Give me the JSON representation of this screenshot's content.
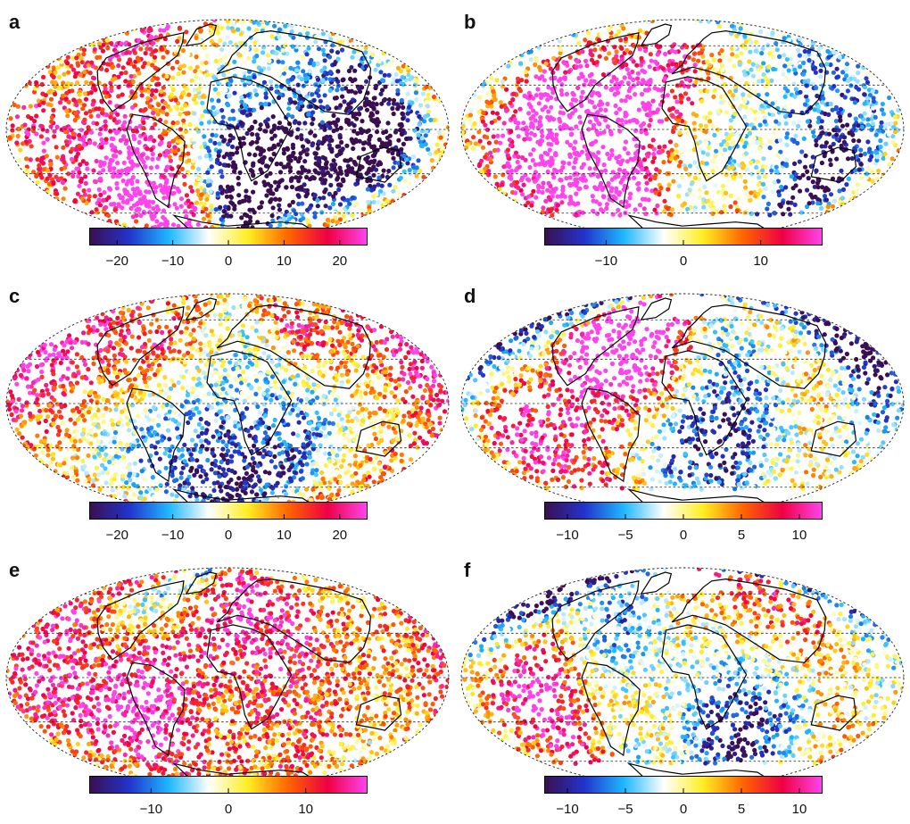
{
  "figure": {
    "colormap": [
      "#3b0f4f",
      "#2233cc",
      "#1fb8ff",
      "#ffffff",
      "#ffee22",
      "#ff6600",
      "#ee0044",
      "#ff44ee"
    ],
    "coastline_color": "#000000",
    "graticule_style": "dashed",
    "panels": [
      {
        "label": "a",
        "ticks": [
          -20,
          -10,
          0,
          10,
          20
        ],
        "range": [
          -25,
          25
        ],
        "bias": 0.0,
        "density": 1.0,
        "ice_caps": false
      },
      {
        "label": "b",
        "ticks": [
          -10,
          0,
          10
        ],
        "range": [
          -18,
          18
        ],
        "bias": 0.0,
        "density": 0.85,
        "ice_caps": true
      },
      {
        "label": "c",
        "ticks": [
          -20,
          -10,
          0,
          10,
          20
        ],
        "range": [
          -25,
          25
        ],
        "bias": -0.1,
        "density": 1.0,
        "ice_caps": false
      },
      {
        "label": "d",
        "ticks": [
          -10,
          -5,
          0,
          5,
          10
        ],
        "range": [
          -12,
          12
        ],
        "bias": 0.0,
        "density": 0.85,
        "ice_caps": true
      },
      {
        "label": "e",
        "ticks": [
          -10,
          0,
          10
        ],
        "range": [
          -18,
          18
        ],
        "bias": -0.05,
        "density": 1.0,
        "ice_caps": false
      },
      {
        "label": "f",
        "ticks": [
          -10,
          -5,
          0,
          5,
          10
        ],
        "range": [
          -12,
          12
        ],
        "bias": 0.45,
        "density": 0.9,
        "ice_caps": true
      }
    ]
  }
}
